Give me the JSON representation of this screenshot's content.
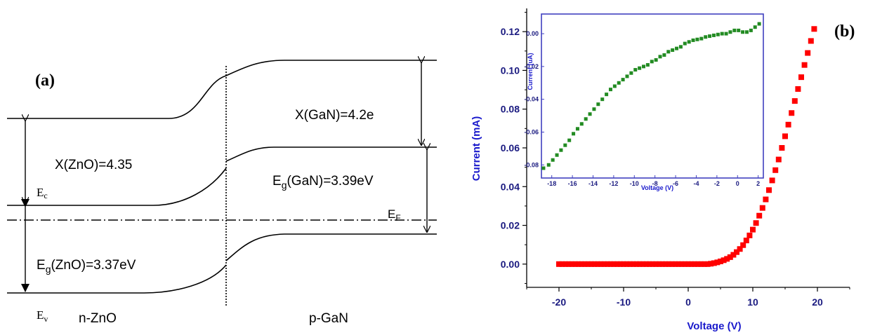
{
  "band_diagram": {
    "panel_label": "(a)",
    "ec_label": "E",
    "ec_sub": "c",
    "ev_label": "E",
    "ev_sub": "v",
    "ef_label": "E",
    "ef_sub": "F",
    "chi_zno": "X(ZnO)=4.35",
    "chi_gan": "X(GaN)=4.2e",
    "eg_zno_pre": "E",
    "eg_zno_sub": "g",
    "eg_zno_post": "(ZnO)=3.37eV",
    "eg_gan_pre": "E",
    "eg_gan_sub": "g",
    "eg_gan_post": "(GaN)=3.39eV",
    "n_side": "n-ZnO",
    "p_side": "p-GaN"
  },
  "chart_data": [
    {
      "type": "scatter",
      "panel_label": "(b)",
      "xlabel": "Voltage (V)",
      "ylabel": "Current (mA)",
      "xlim": [
        -25,
        25
      ],
      "ylim": [
        -0.012,
        0.132
      ],
      "xticks": [
        -20,
        -10,
        0,
        10,
        20
      ],
      "yticks": [
        0.0,
        0.02,
        0.04,
        0.06,
        0.08,
        0.1,
        0.12
      ],
      "marker_color": "#ff0000",
      "series": [
        {
          "x": [
            -20,
            -19.5,
            -19,
            -18.5,
            -18,
            -17.5,
            -17,
            -16.5,
            -16,
            -15.5,
            -15,
            -14.5,
            -14,
            -13.5,
            -13,
            -12.5,
            -12,
            -11.5,
            -11,
            -10.5,
            -10,
            -9.5,
            -9,
            -8.5,
            -8,
            -7.5,
            -7,
            -6.5,
            -6,
            -5.5,
            -5,
            -4.5,
            -4,
            -3.5,
            -3,
            -2.5,
            -2,
            -1.5,
            -1,
            -0.5,
            0,
            0.5,
            1,
            1.5,
            2,
            2.5,
            3,
            3.5,
            4,
            4.5,
            5,
            5.5,
            6,
            6.5,
            7,
            7.5,
            8,
            8.5,
            9,
            9.5,
            10,
            10.5,
            11,
            11.5,
            12,
            12.5,
            13,
            13.5,
            14,
            14.5,
            15,
            15.5,
            16,
            16.5,
            17,
            17.5,
            18,
            18.5,
            19,
            19.5
          ],
          "y": [
            0,
            0,
            0,
            0,
            0,
            0,
            0,
            0,
            0,
            0,
            0,
            0,
            0,
            0,
            0,
            0,
            0,
            0,
            0,
            0,
            0,
            0,
            0,
            0,
            0,
            0,
            0,
            0,
            0,
            0,
            0,
            0,
            0,
            0,
            0,
            0,
            0,
            0,
            0,
            0,
            0,
            0,
            0,
            0,
            0,
            0,
            0,
            0.0002,
            0.0005,
            0.0009,
            0.0014,
            0.002,
            0.0027,
            0.0036,
            0.0048,
            0.0062,
            0.0078,
            0.0098,
            0.0122,
            0.0148,
            0.0178,
            0.0212,
            0.025,
            0.029,
            0.0334,
            0.0382,
            0.0432,
            0.0485,
            0.054,
            0.06,
            0.066,
            0.072,
            0.078,
            0.0842,
            0.0904,
            0.0965,
            0.1028,
            0.109,
            0.1152,
            0.1214
          ]
        }
      ]
    },
    {
      "type": "scatter",
      "inset": true,
      "xlabel": "Voltage (V)",
      "ylabel": "Current (uA)",
      "xlim": [
        -19,
        2.5
      ],
      "ylim": [
        -0.088,
        0.012
      ],
      "xticks": [
        -18,
        -16,
        -14,
        -12,
        -10,
        -8,
        -6,
        -4,
        -2,
        0,
        2
      ],
      "yticks": [
        0.0,
        -0.02,
        -0.04,
        -0.06,
        -0.08
      ],
      "marker_color": "#228b22",
      "series": [
        {
          "x": [
            -18.8,
            -18.3,
            -17.9,
            -17.5,
            -17.1,
            -16.7,
            -16.3,
            -15.9,
            -15.5,
            -15.1,
            -14.7,
            -14.3,
            -13.9,
            -13.5,
            -13.1,
            -12.7,
            -12.3,
            -11.9,
            -11.5,
            -11.1,
            -10.7,
            -10.3,
            -9.9,
            -9.5,
            -9.1,
            -8.7,
            -8.3,
            -7.9,
            -7.5,
            -7.1,
            -6.7,
            -6.3,
            -5.9,
            -5.5,
            -5.1,
            -4.7,
            -4.3,
            -3.9,
            -3.5,
            -3.1,
            -2.7,
            -2.3,
            -1.9,
            -1.5,
            -1.1,
            -0.7,
            -0.3,
            0.1,
            0.5,
            0.9,
            1.3,
            1.7,
            2.1
          ],
          "y": [
            -0.082,
            -0.08,
            -0.077,
            -0.074,
            -0.071,
            -0.068,
            -0.065,
            -0.061,
            -0.058,
            -0.055,
            -0.052,
            -0.049,
            -0.046,
            -0.043,
            -0.04,
            -0.037,
            -0.034,
            -0.032,
            -0.03,
            -0.028,
            -0.026,
            -0.024,
            -0.022,
            -0.021,
            -0.02,
            -0.019,
            -0.017,
            -0.016,
            -0.014,
            -0.013,
            -0.011,
            -0.01,
            -0.009,
            -0.008,
            -0.006,
            -0.005,
            -0.004,
            -0.0035,
            -0.003,
            -0.002,
            -0.0015,
            -0.001,
            -0.0005,
            0.0,
            0.0,
            0.001,
            0.002,
            0.002,
            0.001,
            0.001,
            0.002,
            0.004,
            0.006
          ]
        }
      ]
    }
  ]
}
